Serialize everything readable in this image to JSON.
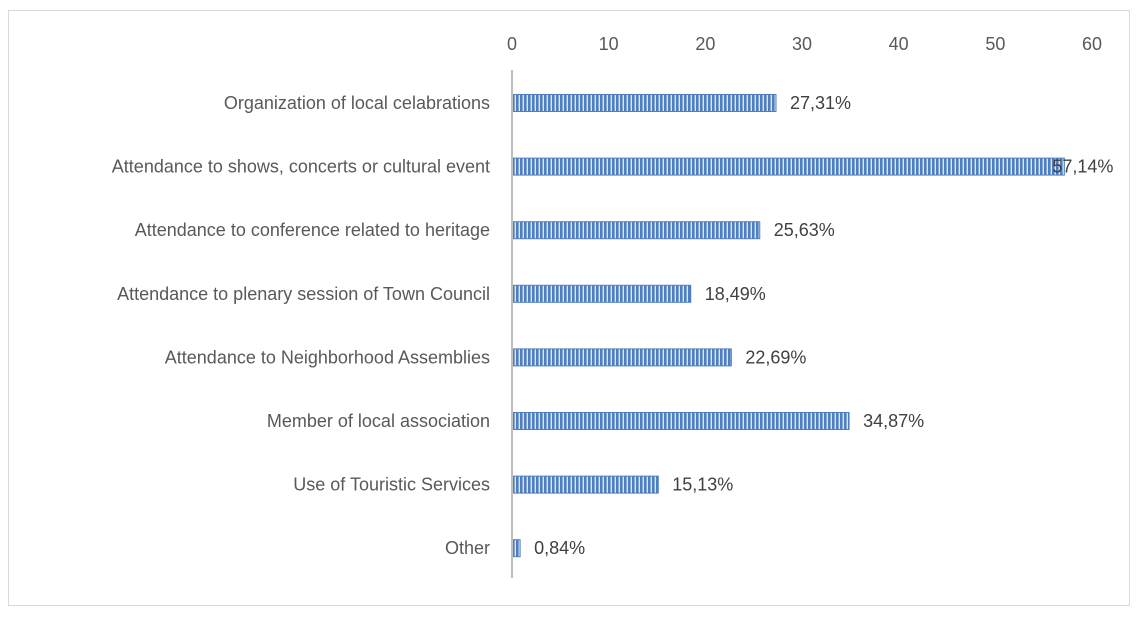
{
  "chart_data": {
    "type": "bar",
    "orientation": "horizontal",
    "title": "",
    "xlabel": "",
    "ylabel": "",
    "xlim": [
      0,
      60
    ],
    "x_ticks": [
      0,
      10,
      20,
      30,
      40,
      50,
      60
    ],
    "x_axis_position": "top",
    "grid": false,
    "legend": "none",
    "bar_color": "#4f7fc0",
    "bar_stripe_color": "#dbe6f5",
    "categories": [
      "Organization of local celabrations",
      "Attendance to shows, concerts or cultural event",
      "Attendance to conference related to heritage",
      "Attendance to plenary session of Town Council",
      "Attendance to Neighborhood Assemblies",
      "Member of local association",
      "Use of Touristic Services",
      "Other"
    ],
    "values": [
      27.31,
      57.14,
      25.63,
      18.49,
      22.69,
      34.87,
      15.13,
      0.84
    ],
    "data_labels": [
      "27,31%",
      "57,14%",
      "25,63%",
      "18,49%",
      "22,69%",
      "34,87%",
      "15,13%",
      "0,84%"
    ]
  }
}
